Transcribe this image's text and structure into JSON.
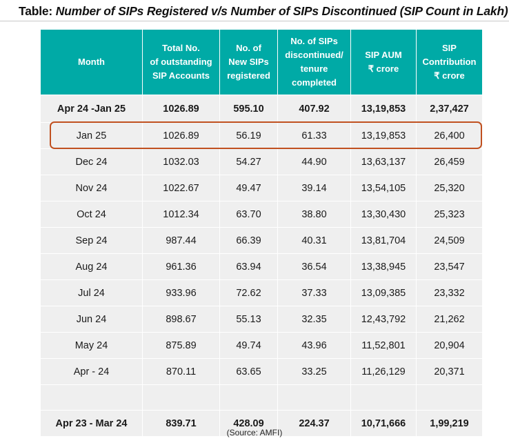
{
  "title": {
    "prefix": "Table: ",
    "text": "Number of SIPs Registered v/s Number of SIPs Discontinued (SIP Count in Lakh)"
  },
  "colors": {
    "header_bg": "#00aaa6",
    "row_bg": "#efefef",
    "highlight": "#c0501f"
  },
  "table": {
    "headers": [
      [
        "Month"
      ],
      [
        "Total No.",
        "of outstanding",
        "SIP Accounts"
      ],
      [
        "No. of",
        "New SIPs",
        "registered"
      ],
      [
        "No. of SIPs",
        "discontinued/",
        "tenure",
        "completed"
      ],
      [
        "SIP AUM",
        "₹ crore"
      ],
      [
        "SIP",
        "Contribution",
        "₹ crore"
      ]
    ],
    "summary_row": [
      "Apr 24 -Jan 25",
      "1026.89",
      "595.10",
      "407.92",
      "13,19,853",
      "2,37,427"
    ],
    "rows": [
      [
        "Jan 25",
        "1026.89",
        "56.19",
        "61.33",
        "13,19,853",
        "26,400"
      ],
      [
        "Dec 24",
        "1032.03",
        "54.27",
        "44.90",
        "13,63,137",
        "26,459"
      ],
      [
        "Nov 24",
        "1022.67",
        "49.47",
        "39.14",
        "13,54,105",
        "25,320"
      ],
      [
        "Oct 24",
        "1012.34",
        "63.70",
        "38.80",
        "13,30,430",
        "25,323"
      ],
      [
        "Sep 24",
        "987.44",
        "66.39",
        "40.31",
        "13,81,704",
        "24,509"
      ],
      [
        "Aug 24",
        "961.36",
        "63.94",
        "36.54",
        "13,38,945",
        "23,547"
      ],
      [
        "Jul 24",
        "933.96",
        "72.62",
        "37.33",
        "13,09,385",
        "23,332"
      ],
      [
        "Jun 24",
        "898.67",
        "55.13",
        "32.35",
        "12,43,792",
        "21,262"
      ],
      [
        "May 24",
        "875.89",
        "49.74",
        "43.96",
        "11,52,801",
        "20,904"
      ],
      [
        "Apr - 24",
        "870.11",
        "63.65",
        "33.25",
        "11,26,129",
        "20,371"
      ]
    ],
    "highlighted_row": "Jan 25",
    "total_row": [
      "Apr 23 - Mar 24",
      "839.71",
      "428.09",
      "224.37",
      "10,71,666",
      "1,99,219"
    ]
  },
  "source": "(Source: AMFI)"
}
